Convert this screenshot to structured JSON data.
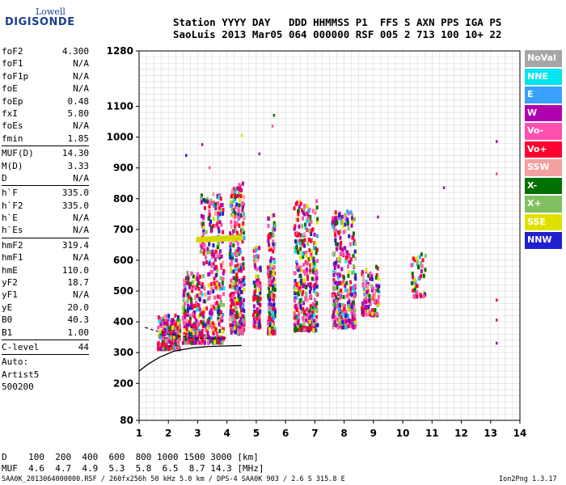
{
  "logo": {
    "top": "Lowell",
    "bottom": "DIGISONDE"
  },
  "header": {
    "line1": "Station YYYY DAY   DDD HHMMSS P1  FFS S AXN PPS IGA PS",
    "line2": "SaoLuis 2013 Mar05 064 000000 RSF 005 2 713 100 10+ 22"
  },
  "params": [
    {
      "k": "foF2",
      "v": "4.300"
    },
    {
      "k": "foF1",
      "v": "N/A"
    },
    {
      "k": "foF1p",
      "v": "N/A"
    },
    {
      "k": "foE",
      "v": "N/A"
    },
    {
      "k": "foEp",
      "v": "0.48"
    },
    {
      "k": "fxI",
      "v": "5.80"
    },
    {
      "k": "foEs",
      "v": "N/A"
    },
    {
      "k": "fmin",
      "v": "1.85"
    },
    {
      "sep": true
    },
    {
      "k": "MUF(D)",
      "v": "14.30"
    },
    {
      "k": "M(D)",
      "v": "3.33"
    },
    {
      "k": "D",
      "v": "N/A"
    },
    {
      "sep": true
    },
    {
      "k": "h`F",
      "v": "335.0"
    },
    {
      "k": "h`F2",
      "v": "335.0"
    },
    {
      "k": "h`E",
      "v": "N/A"
    },
    {
      "k": "h`Es",
      "v": "N/A"
    },
    {
      "sep": true
    },
    {
      "k": "hmF2",
      "v": "319.4"
    },
    {
      "k": "hmF1",
      "v": "N/A"
    },
    {
      "k": "hmE",
      "v": "110.0"
    },
    {
      "k": "yF2",
      "v": "18.7"
    },
    {
      "k": "yF1",
      "v": "N/A"
    },
    {
      "k": "yE",
      "v": "20.0"
    },
    {
      "k": "B0",
      "v": "40.3"
    },
    {
      "k": "B1",
      "v": "1.00"
    },
    {
      "sep": true
    },
    {
      "k": "C-level",
      "v": "44"
    },
    {
      "sep": true
    }
  ],
  "auto": [
    "Auto:",
    "Artist5",
    "500200"
  ],
  "bottom": {
    "d_line": "D    100  200  400  600  800 1000 1500 3000 [km]",
    "muf_line": "MUF  4.6  4.7  4.9  5.3  5.8  6.5  8.7 14.3 [MHz]"
  },
  "footer": {
    "left": "SAA0K_2013064000000.RSF / 260fx256h 50 kHz 5.0 km / DPS-4 SAA0K 903 / 2.6 S 315.8 E",
    "right": "Ion2Png 1.3.17"
  },
  "legend": [
    {
      "label": "NoVal",
      "color": "#a6a6a6"
    },
    {
      "label": "NNE",
      "color": "#00e5ee"
    },
    {
      "label": "E",
      "color": "#3aa0ff"
    },
    {
      "label": "W",
      "color": "#b000b0"
    },
    {
      "label": "Vo-",
      "color": "#ff4fb0"
    },
    {
      "label": "Vo+",
      "color": "#ff0030"
    },
    {
      "label": "SSW",
      "color": "#f2a0a0"
    },
    {
      "label": "X-",
      "color": "#007000"
    },
    {
      "label": "X+",
      "color": "#80c060"
    },
    {
      "label": "SSE",
      "color": "#e0e000"
    },
    {
      "label": "NNW",
      "color": "#2020d0"
    }
  ],
  "chart_data": {
    "type": "scatter",
    "xlim": [
      1,
      14
    ],
    "ylim": [
      80,
      1280
    ],
    "x_ticks": [
      1,
      2,
      3,
      4,
      5,
      6,
      7,
      8,
      9,
      10,
      11,
      12,
      13,
      14
    ],
    "y_ticks": [
      80,
      200,
      300,
      400,
      500,
      600,
      700,
      800,
      900,
      1000,
      1100,
      1280
    ],
    "grid": true,
    "vertical_grid_step": 0.25,
    "horizontal_grid_step": 20,
    "echo_clusters": [
      {
        "x": [
          1.65,
          2.4
        ],
        "y": [
          310,
          420
        ],
        "density": 260
      },
      {
        "x": [
          2.5,
          3.1
        ],
        "y": [
          330,
          560
        ],
        "density": 220
      },
      {
        "x": [
          3.1,
          3.9
        ],
        "y": [
          330,
          820
        ],
        "density": 320
      },
      {
        "x": [
          4.1,
          4.6
        ],
        "y": [
          360,
          850
        ],
        "density": 320
      },
      {
        "x": [
          4.9,
          5.15
        ],
        "y": [
          380,
          640
        ],
        "density": 120
      },
      {
        "x": [
          5.4,
          5.65
        ],
        "y": [
          360,
          750
        ],
        "density": 170
      },
      {
        "x": [
          6.3,
          7.1
        ],
        "y": [
          370,
          800
        ],
        "density": 360
      },
      {
        "x": [
          7.6,
          8.4
        ],
        "y": [
          380,
          760
        ],
        "density": 330
      },
      {
        "x": [
          8.6,
          9.2
        ],
        "y": [
          420,
          580
        ],
        "density": 110
      },
      {
        "x": [
          10.3,
          10.8
        ],
        "y": [
          480,
          620
        ],
        "density": 50
      }
    ],
    "scattered_points": [
      {
        "x": 2.6,
        "y": 940
      },
      {
        "x": 3.15,
        "y": 975
      },
      {
        "x": 4.5,
        "y": 1005
      },
      {
        "x": 5.1,
        "y": 945
      },
      {
        "x": 5.6,
        "y": 1070
      },
      {
        "x": 5.55,
        "y": 1035
      },
      {
        "x": 13.2,
        "y": 985
      },
      {
        "x": 13.2,
        "y": 880
      },
      {
        "x": 13.2,
        "y": 470
      },
      {
        "x": 13.2,
        "y": 405
      },
      {
        "x": 13.2,
        "y": 330
      },
      {
        "x": 11.4,
        "y": 835
      },
      {
        "x": 9.15,
        "y": 740
      },
      {
        "x": 3.4,
        "y": 900
      }
    ],
    "highlight_trace": {
      "series": "SSE",
      "x": [
        3.0,
        4.5
      ],
      "y": [
        665,
        672
      ]
    },
    "profile_trace": {
      "x": [
        1.0,
        1.3,
        1.7,
        2.2,
        2.8,
        3.4,
        4.0,
        4.5
      ],
      "y": [
        240,
        262,
        285,
        305,
        315,
        320,
        322,
        323
      ]
    },
    "dashed_trace": {
      "x": [
        1.2,
        1.6,
        2.0,
        2.4,
        2.8,
        3.2,
        3.6,
        4.0
      ],
      "y": [
        382,
        370,
        360,
        353,
        348,
        346,
        346,
        348
      ]
    }
  }
}
